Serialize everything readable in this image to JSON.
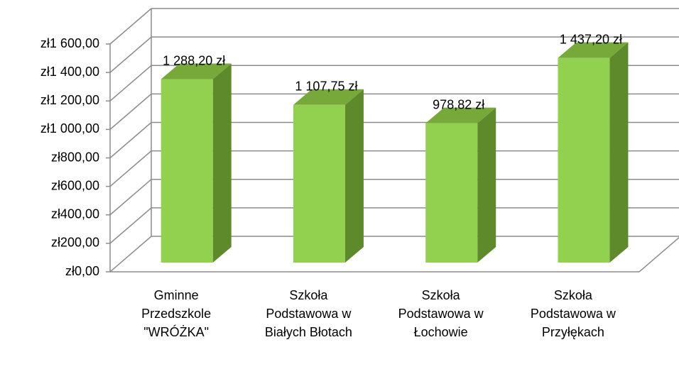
{
  "chart_data": {
    "type": "bar3d",
    "categories": [
      "Gminne Przedszkole \"WRÓŻKA\"",
      "Szkoła Podstawowa w Białych Błotach",
      "Szkoła Podstawowa w Łochowie",
      "Szkoła Podstawowa w Przyłękach"
    ],
    "values": [
      1288.2,
      1107.75,
      978.82,
      1437.2
    ],
    "value_labels": [
      "1 288,20 zł",
      "1 107,75 zł",
      "978,82 zł",
      "1 437,20 zł"
    ],
    "color": "#92d050",
    "ylim": [
      0,
      1600
    ],
    "yticks": [
      {
        "value": 0,
        "label": "zł0,00"
      },
      {
        "value": 200,
        "label": "zł200,00"
      },
      {
        "value": 400,
        "label": "zł400,00"
      },
      {
        "value": 600,
        "label": "zł600,00"
      },
      {
        "value": 800,
        "label": "zł800,00"
      },
      {
        "value": 1000,
        "label": "zł1 000,00"
      },
      {
        "value": 1200,
        "label": "zł1 200,00"
      },
      {
        "value": 1400,
        "label": "zł1 400,00"
      },
      {
        "value": 1600,
        "label": "zł1 600,00"
      }
    ],
    "grid": true
  }
}
